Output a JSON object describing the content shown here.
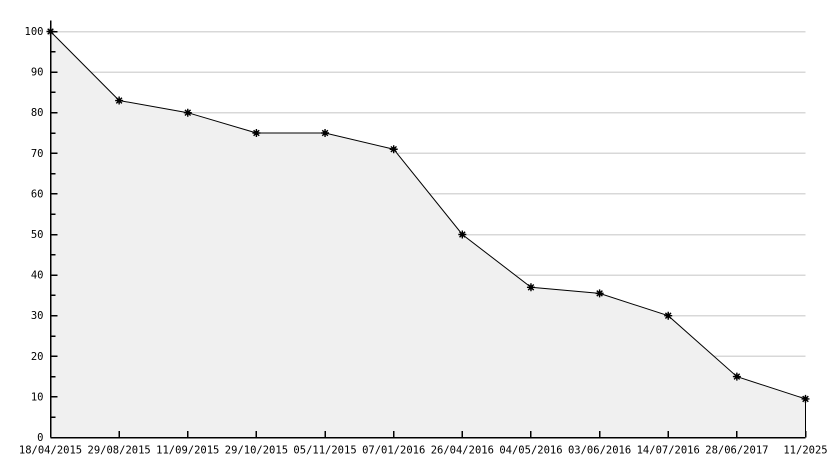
{
  "chart_data": {
    "type": "area",
    "title": "",
    "xlabel": "",
    "ylabel": "",
    "x": [
      "18/04/2015",
      "29/08/2015",
      "11/09/2015",
      "29/10/2015",
      "05/11/2015",
      "07/01/2016",
      "26/04/2016",
      "04/05/2016",
      "03/06/2016",
      "14/07/2016",
      "28/06/2017",
      "11/2025"
    ],
    "values": [
      100,
      83,
      80,
      75,
      75,
      71,
      50,
      37,
      35.5,
      30,
      15,
      9.5
    ],
    "ylim": [
      0,
      100
    ],
    "y_major_step": 10,
    "y_minor_step": 5,
    "grid": "horizontal-major",
    "grid_under_fill": true,
    "legend_position": "none",
    "marker": "filled-star",
    "colors": {
      "background": "#ffffff",
      "area_fill": "#f0f0f0",
      "line": "#000000",
      "marker": "#000000",
      "grid": "#d8d8d8",
      "axis": "#000000",
      "text": "#000000"
    }
  }
}
